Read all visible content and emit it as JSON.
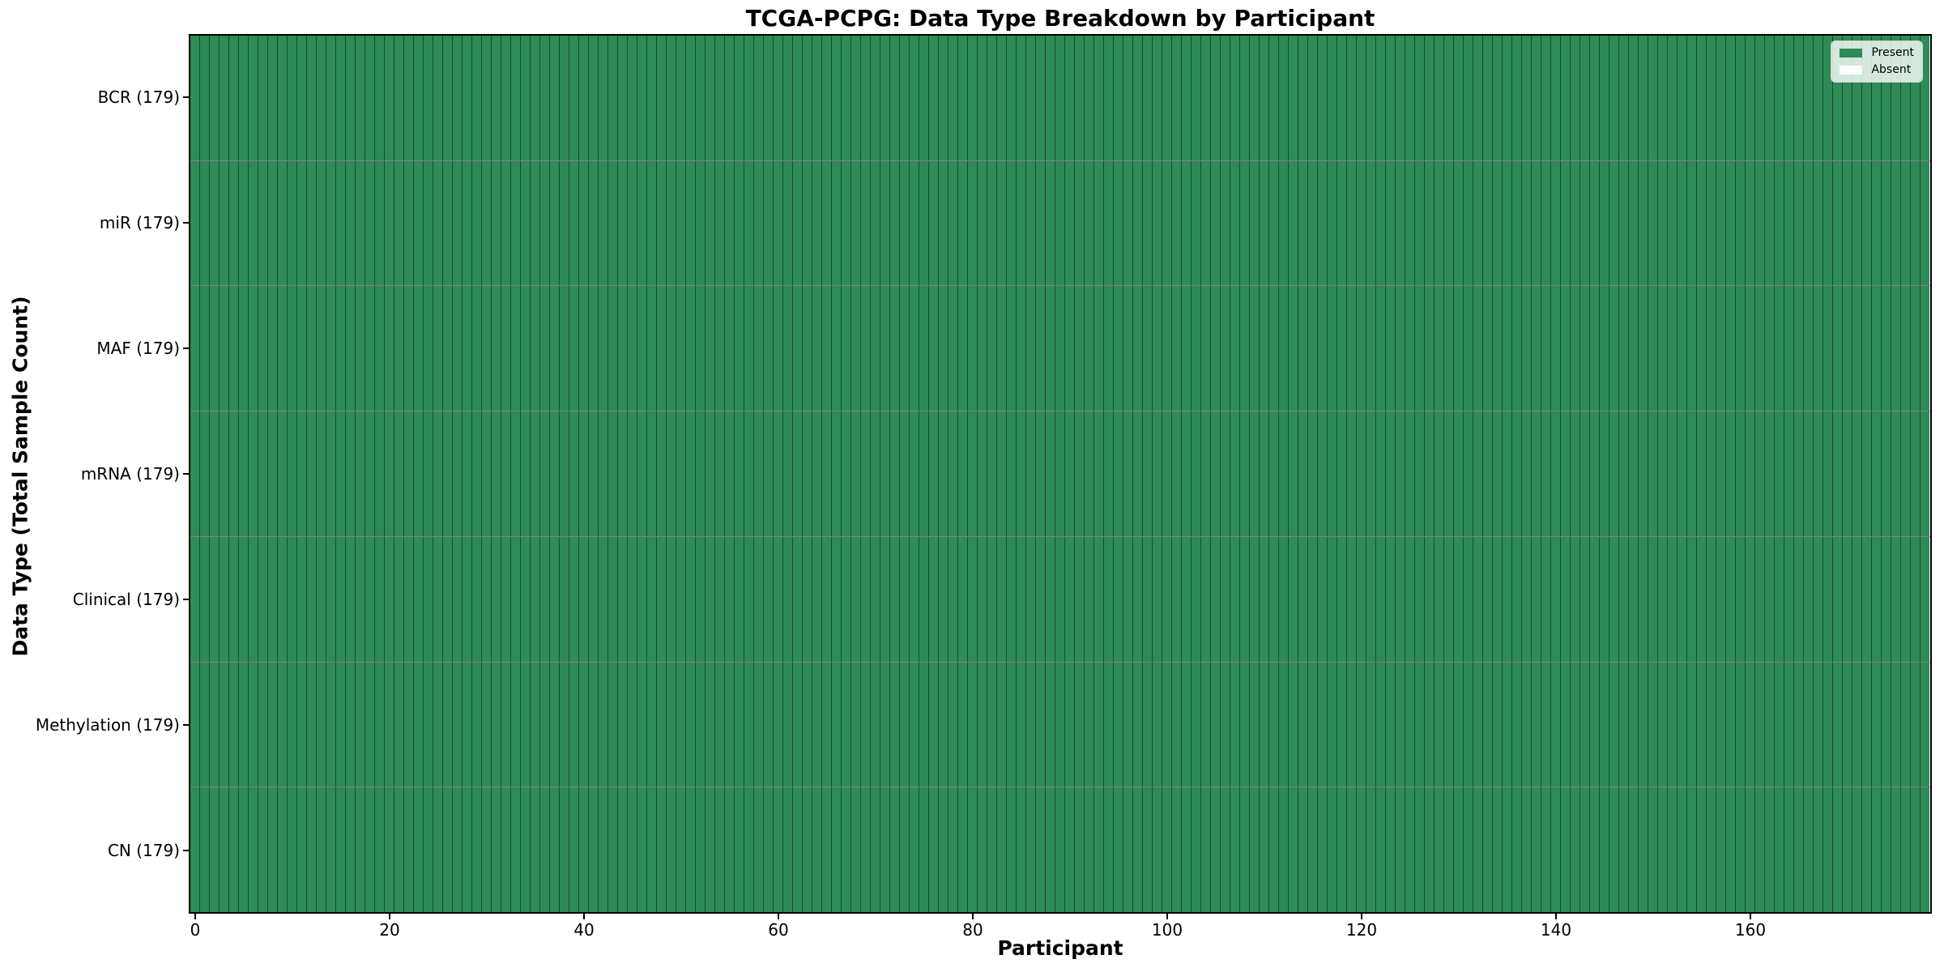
{
  "figure": {
    "title": "TCGA-PCPG: Data Type Breakdown by Participant",
    "xlabel": "Participant",
    "ylabel": "Data Type (Total Sample Count)"
  },
  "chart_data": {
    "type": "heatmap",
    "title": "TCGA-PCPG: Data Type Breakdown by Participant",
    "xlabel": "Participant",
    "ylabel": "Data Type (Total Sample Count)",
    "x_range": [
      -0.5,
      178.5
    ],
    "x_ticks": [
      0,
      20,
      40,
      60,
      80,
      100,
      120,
      140,
      160
    ],
    "n_participants": 179,
    "categories": [
      "BCR (179)",
      "miR (179)",
      "MAF (179)",
      "mRNA (179)",
      "Clinical (179)",
      "Methylation (179)",
      "CN (179)"
    ],
    "rows": [
      {
        "label": "BCR (179)",
        "total_sample_count": 179,
        "present_count": 179,
        "absent_count": 0
      },
      {
        "label": "miR (179)",
        "total_sample_count": 179,
        "present_count": 179,
        "absent_count": 0
      },
      {
        "label": "MAF (179)",
        "total_sample_count": 179,
        "present_count": 179,
        "absent_count": 0
      },
      {
        "label": "mRNA (179)",
        "total_sample_count": 179,
        "present_count": 179,
        "absent_count": 0
      },
      {
        "label": "Clinical (179)",
        "total_sample_count": 179,
        "present_count": 179,
        "absent_count": 0
      },
      {
        "label": "Methylation (179)",
        "total_sample_count": 179,
        "present_count": 179,
        "absent_count": 0
      },
      {
        "label": "CN (179)",
        "total_sample_count": 179,
        "present_count": 179,
        "absent_count": 0
      }
    ],
    "legend": [
      {
        "label": "Present",
        "color": "#2e8b57"
      },
      {
        "label": "Absent",
        "color": "#ffffff"
      }
    ],
    "legend_position": "upper right",
    "grid": "cell-borders",
    "colors": {
      "present": "#2e8b57",
      "absent": "#ffffff",
      "cell_border": "rgba(0,0,0,0.45)",
      "row_divider": "rgba(0,0,0,0.5)",
      "axes_spine": "#000000",
      "background": "#ffffff"
    }
  }
}
